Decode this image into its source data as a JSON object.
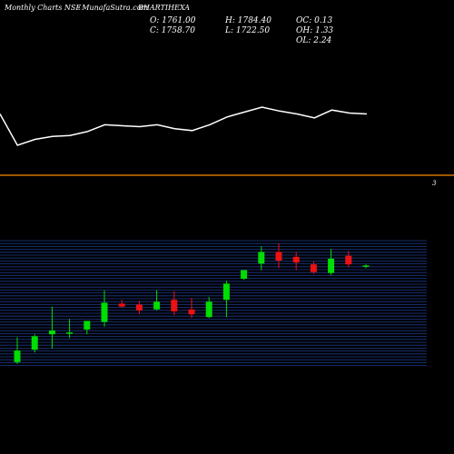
{
  "header": {
    "site": "Monthly Charts NSE",
    "source": "- MunafaSutra.com",
    "symbol": "BHARTIHEXA",
    "open": "O: 1761.00",
    "close": "C: 1758.70",
    "high": "H: 1784.40",
    "low": "L: 1722.50",
    "oc": "OC: 0.13",
    "oh": "OH: 1.33",
    "ol": "OL: 2.24"
  },
  "colors": {
    "background": "#000000",
    "line": "#ffffff",
    "divider": "#ff8c00",
    "grid": "#1e3a8a",
    "up": "#00dd00",
    "down": "#ee1111"
  },
  "chart_data": [
    {
      "type": "line",
      "title": "",
      "y": [
        72,
        40,
        46,
        49,
        50,
        54,
        61,
        60,
        59,
        61,
        57,
        55,
        61,
        69,
        74,
        79,
        75,
        72,
        68,
        76,
        73,
        72
      ]
    },
    {
      "type": "candlestick",
      "title": "",
      "label": "3",
      "ylim": [
        0,
        100
      ],
      "candles": [
        {
          "o": 4,
          "c": 16,
          "h": 30,
          "l": 2
        },
        {
          "o": 17,
          "c": 31,
          "h": 33,
          "l": 14
        },
        {
          "o": 33,
          "c": 37,
          "h": 62,
          "l": 18
        },
        {
          "o": 35,
          "c": 35,
          "h": 49,
          "l": 29
        },
        {
          "o": 38,
          "c": 47,
          "h": 47,
          "l": 33
        },
        {
          "o": 46,
          "c": 66,
          "h": 79,
          "l": 41
        },
        {
          "o": 65,
          "c": 62,
          "h": 69,
          "l": 61
        },
        {
          "o": 64,
          "c": 58,
          "h": 68,
          "l": 54
        },
        {
          "o": 59,
          "c": 67,
          "h": 79,
          "l": 58
        },
        {
          "o": 69,
          "c": 57,
          "h": 78,
          "l": 53
        },
        {
          "o": 59,
          "c": 54,
          "h": 71,
          "l": 50
        },
        {
          "o": 51,
          "c": 67,
          "h": 72,
          "l": 50
        },
        {
          "o": 69,
          "c": 86,
          "h": 89,
          "l": 51
        },
        {
          "o": 91,
          "c": 100,
          "h": 100,
          "l": 90
        },
        {
          "o": 107,
          "c": 119,
          "h": 125,
          "l": 100
        },
        {
          "o": 119,
          "c": 110,
          "h": 128,
          "l": 102
        },
        {
          "o": 114,
          "c": 108,
          "h": 119,
          "l": 100
        },
        {
          "o": 106,
          "c": 98,
          "h": 109,
          "l": 96
        },
        {
          "o": 97,
          "c": 112,
          "h": 122,
          "l": 95
        },
        {
          "o": 115,
          "c": 106,
          "h": 120,
          "l": 103
        },
        {
          "o": 105,
          "c": 105,
          "h": 106,
          "l": 102
        }
      ]
    }
  ]
}
